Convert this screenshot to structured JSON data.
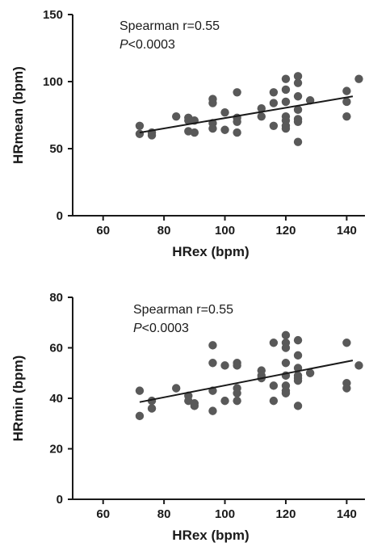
{
  "chart_data": [
    {
      "type": "scatter",
      "xlabel": "HRex (bpm)",
      "ylabel": "HRmean (bpm)",
      "xlim": [
        50,
        146
      ],
      "ylim": [
        0,
        150
      ],
      "xticks": [
        60,
        80,
        100,
        120,
        140
      ],
      "yticks": [
        0,
        50,
        100,
        150
      ],
      "annotation": {
        "line1": "Spearman r=0.55",
        "line2_italic": "P",
        "line2_rest": "<0.0003"
      },
      "fit_line": {
        "x": [
          72,
          142
        ],
        "y": [
          62,
          89
        ]
      },
      "points": [
        [
          72,
          67
        ],
        [
          72,
          61
        ],
        [
          76,
          62
        ],
        [
          76,
          60
        ],
        [
          84,
          74
        ],
        [
          88,
          73
        ],
        [
          88,
          71
        ],
        [
          88,
          63
        ],
        [
          90,
          71
        ],
        [
          90,
          62
        ],
        [
          96,
          87
        ],
        [
          96,
          84
        ],
        [
          96,
          69
        ],
        [
          96,
          65
        ],
        [
          100,
          77
        ],
        [
          100,
          64
        ],
        [
          104,
          92
        ],
        [
          104,
          73
        ],
        [
          104,
          70
        ],
        [
          104,
          62
        ],
        [
          112,
          80
        ],
        [
          112,
          74
        ],
        [
          116,
          92
        ],
        [
          116,
          84
        ],
        [
          116,
          67
        ],
        [
          120,
          102
        ],
        [
          120,
          94
        ],
        [
          120,
          85
        ],
        [
          120,
          74
        ],
        [
          120,
          71
        ],
        [
          120,
          67
        ],
        [
          120,
          65
        ],
        [
          124,
          104
        ],
        [
          124,
          99
        ],
        [
          124,
          89
        ],
        [
          124,
          79
        ],
        [
          124,
          72
        ],
        [
          124,
          70
        ],
        [
          124,
          55
        ],
        [
          128,
          86
        ],
        [
          140,
          93
        ],
        [
          140,
          85
        ],
        [
          140,
          74
        ],
        [
          144,
          102
        ]
      ]
    },
    {
      "type": "scatter",
      "xlabel": "HRex (bpm)",
      "ylabel": "HRmin (bpm)",
      "xlim": [
        50,
        146
      ],
      "ylim": [
        0,
        80
      ],
      "xticks": [
        60,
        80,
        100,
        120,
        140
      ],
      "yticks": [
        0,
        20,
        40,
        60,
        80
      ],
      "annotation": {
        "line1": "Spearman r=0.55",
        "line2_italic": "P",
        "line2_rest": "<0.0003"
      },
      "fit_line": {
        "x": [
          72,
          142
        ],
        "y": [
          38.5,
          55
        ]
      },
      "points": [
        [
          72,
          43
        ],
        [
          72,
          33
        ],
        [
          76,
          39
        ],
        [
          76,
          36
        ],
        [
          84,
          44
        ],
        [
          88,
          41
        ],
        [
          88,
          39
        ],
        [
          90,
          38
        ],
        [
          90,
          37
        ],
        [
          96,
          61
        ],
        [
          96,
          54
        ],
        [
          96,
          43
        ],
        [
          96,
          35
        ],
        [
          100,
          53
        ],
        [
          100,
          39
        ],
        [
          104,
          54
        ],
        [
          104,
          53
        ],
        [
          104,
          44
        ],
        [
          104,
          42
        ],
        [
          104,
          39
        ],
        [
          112,
          51
        ],
        [
          112,
          49
        ],
        [
          112,
          48
        ],
        [
          116,
          62
        ],
        [
          116,
          45
        ],
        [
          116,
          39
        ],
        [
          120,
          65
        ],
        [
          120,
          62
        ],
        [
          120,
          60
        ],
        [
          120,
          54
        ],
        [
          120,
          49
        ],
        [
          120,
          45
        ],
        [
          120,
          43
        ],
        [
          120,
          42
        ],
        [
          124,
          63
        ],
        [
          124,
          57
        ],
        [
          124,
          52
        ],
        [
          124,
          49
        ],
        [
          124,
          48
        ],
        [
          124,
          47
        ],
        [
          124,
          37
        ],
        [
          128,
          50
        ],
        [
          140,
          62
        ],
        [
          140,
          46
        ],
        [
          140,
          44
        ],
        [
          144,
          53
        ]
      ]
    }
  ]
}
